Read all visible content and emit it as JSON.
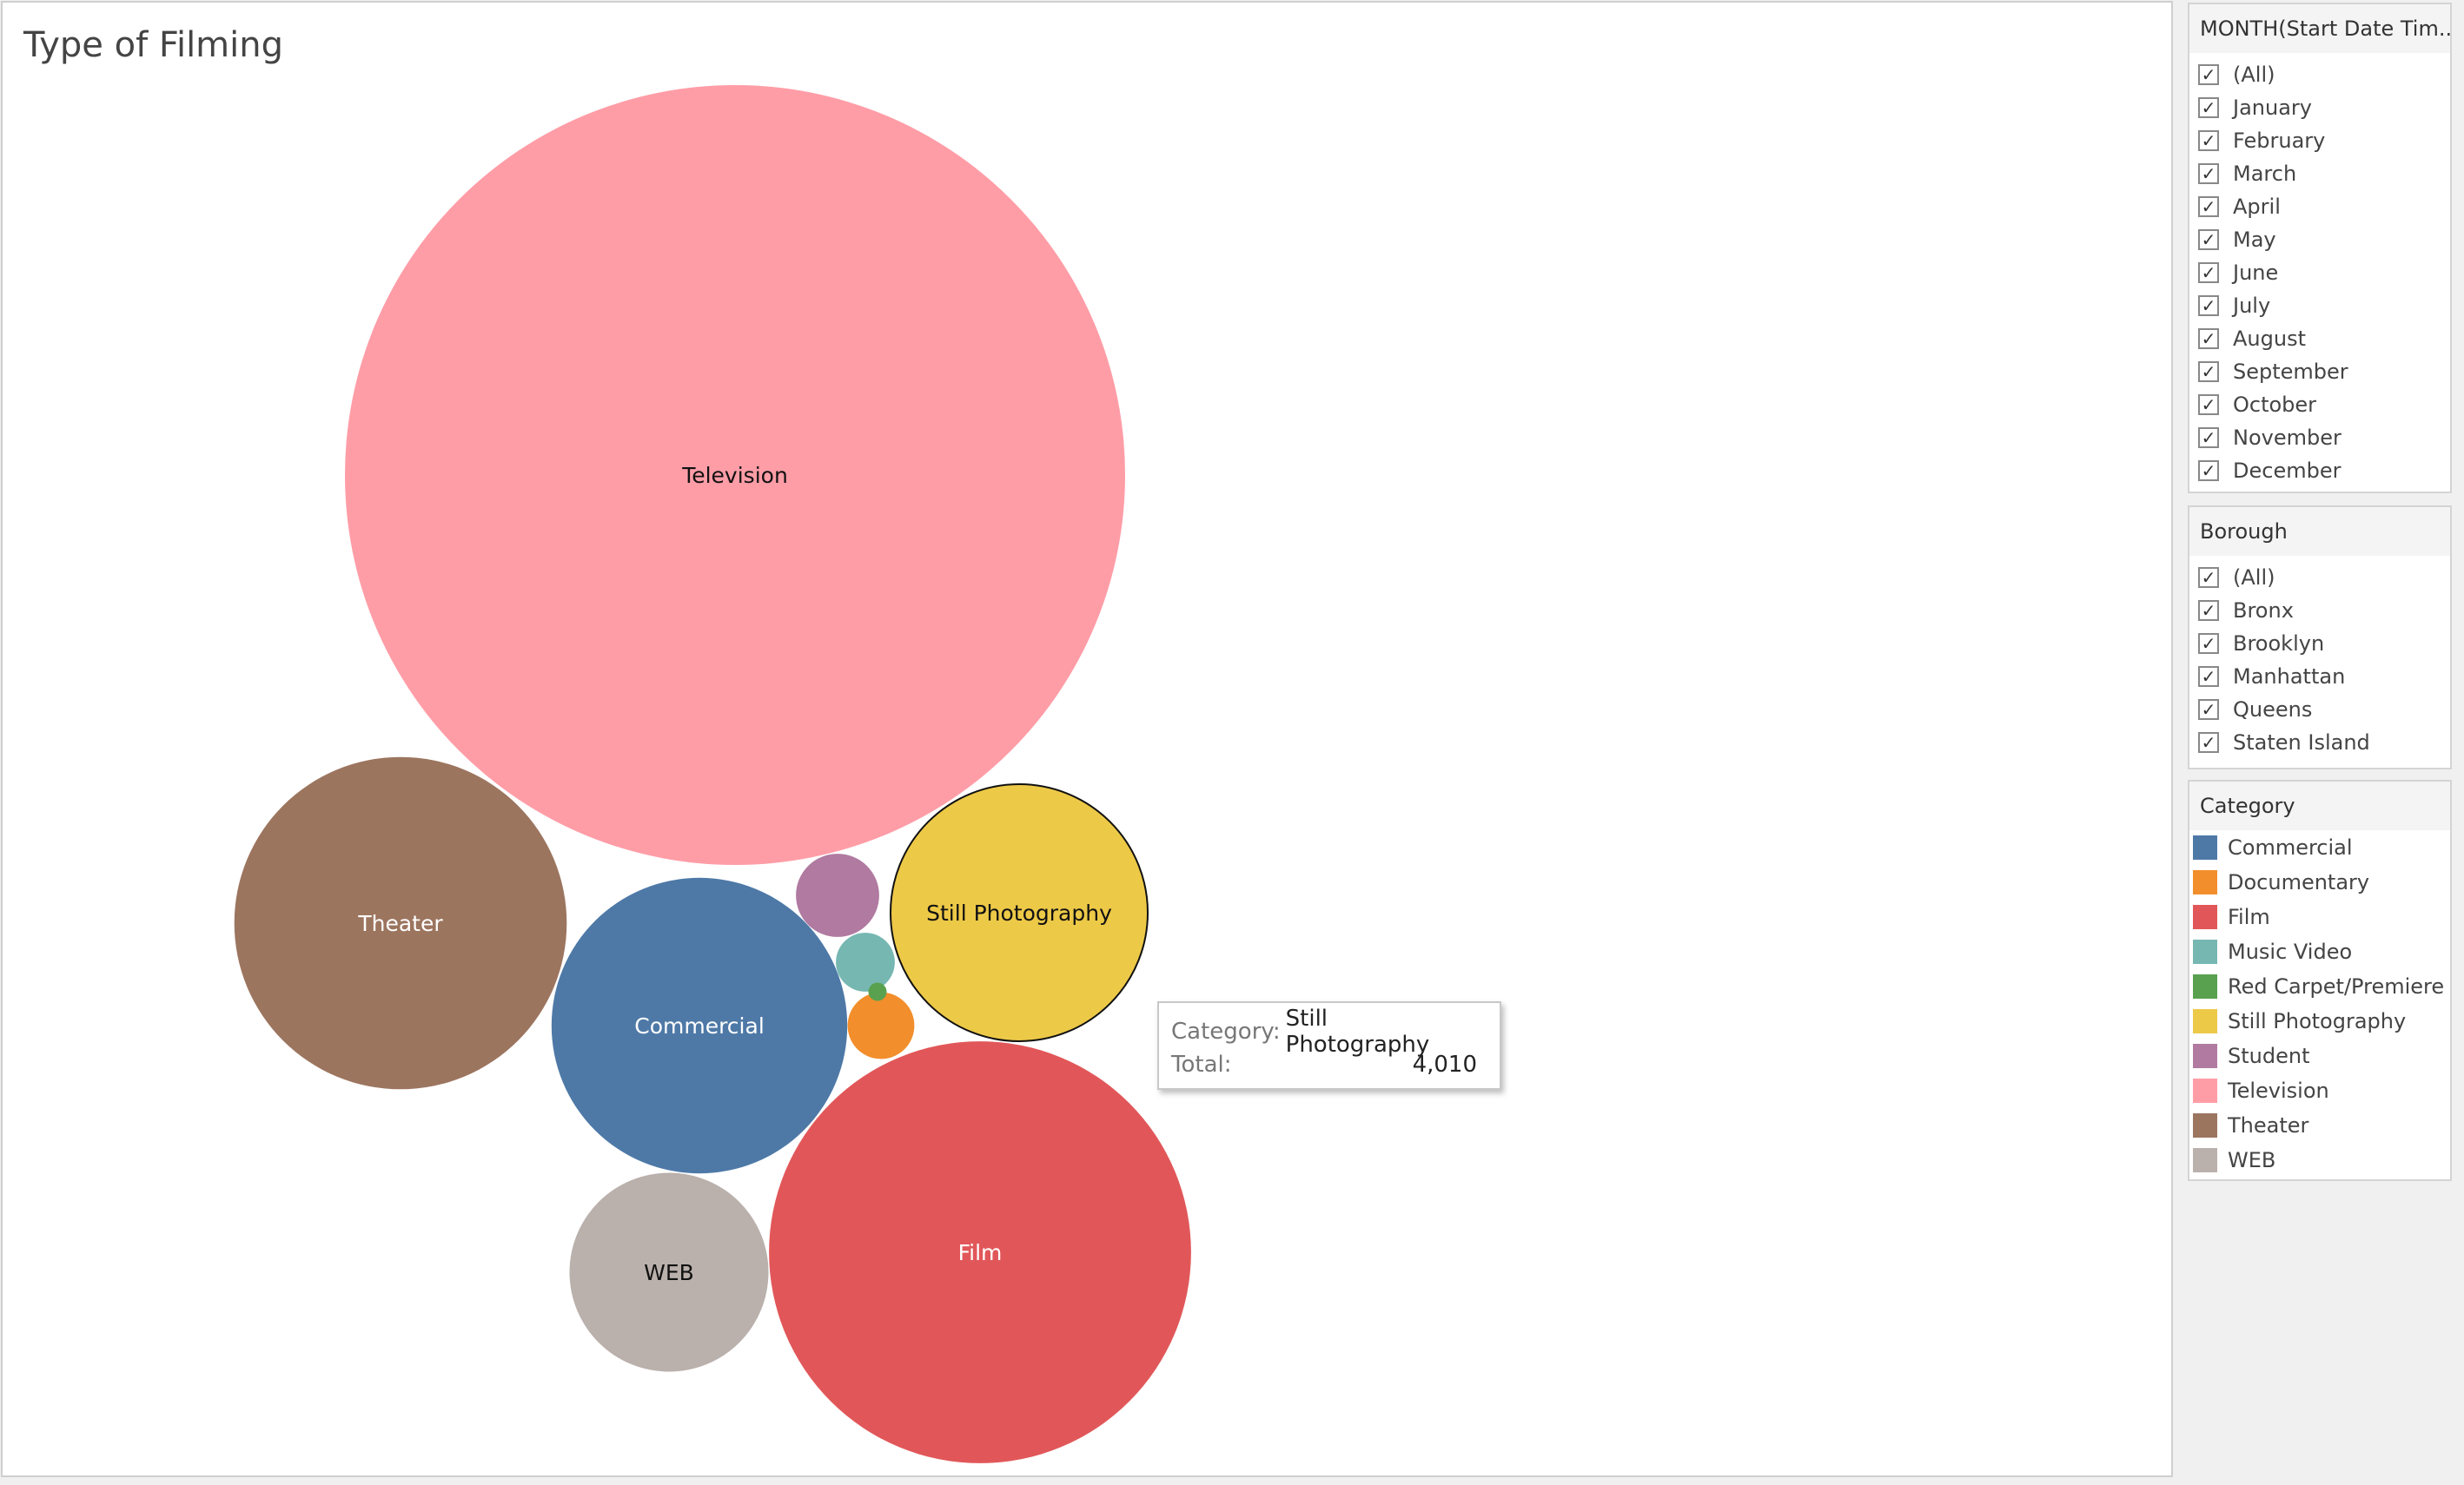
{
  "chart_data": {
    "type": "bubble",
    "title": "Type of Filming",
    "measure": "Total",
    "bubbles": [
      {
        "category": "Television",
        "value": 36900,
        "color": "#ff9da7",
        "label_color": "#111111"
      },
      {
        "category": "Film",
        "value": 10800,
        "color": "#e15759",
        "label_color": "#ffffff"
      },
      {
        "category": "Theater",
        "value": 6700,
        "color": "#9c755f",
        "label_color": "#ffffff"
      },
      {
        "category": "Commercial",
        "value": 5300,
        "color": "#4e79a7",
        "label_color": "#ffffff"
      },
      {
        "category": "Still Photography",
        "value": 4010,
        "color": "#edc948",
        "label_color": "#111111"
      },
      {
        "category": "WEB",
        "value": 2400,
        "color": "#bab0ac",
        "label_color": "#111111"
      },
      {
        "category": "Student",
        "value": 420,
        "color": "#b07aa1",
        "label_color": "#ffffff"
      },
      {
        "category": "Music Video",
        "value": 210,
        "color": "#76b7b2",
        "label_color": "#ffffff"
      },
      {
        "category": "Documentary",
        "value": 270,
        "color": "#f28e2b",
        "label_color": "#ffffff"
      },
      {
        "category": "Red Carpet/Premiere",
        "value": 20,
        "color": "#59a14f",
        "label_color": "#ffffff"
      }
    ]
  },
  "tooltip": {
    "category_key": "Category:",
    "category_value": "Still Photography",
    "total_key": "Total:",
    "total_value": "4,010"
  },
  "filters": {
    "month": {
      "header": "MONTH(Start Date Tim...",
      "items": [
        "(All)",
        "January",
        "February",
        "March",
        "April",
        "May",
        "June",
        "July",
        "August",
        "September",
        "October",
        "November",
        "December"
      ]
    },
    "borough": {
      "header": "Borough",
      "items": [
        "(All)",
        "Bronx",
        "Brooklyn",
        "Manhattan",
        "Queens",
        "Staten Island"
      ]
    }
  },
  "legend": {
    "header": "Category",
    "items": [
      {
        "label": "Commercial",
        "color": "#4e79a7"
      },
      {
        "label": "Documentary",
        "color": "#f28e2b"
      },
      {
        "label": "Film",
        "color": "#e15759"
      },
      {
        "label": "Music Video",
        "color": "#76b7b2"
      },
      {
        "label": "Red Carpet/Premiere",
        "color": "#59a14f"
      },
      {
        "label": "Still Photography",
        "color": "#edc948"
      },
      {
        "label": "Student",
        "color": "#b07aa1"
      },
      {
        "label": "Television",
        "color": "#ff9da7"
      },
      {
        "label": "Theater",
        "color": "#9c755f"
      },
      {
        "label": "WEB",
        "color": "#bab0ac"
      }
    ]
  },
  "check_glyph": "✓"
}
